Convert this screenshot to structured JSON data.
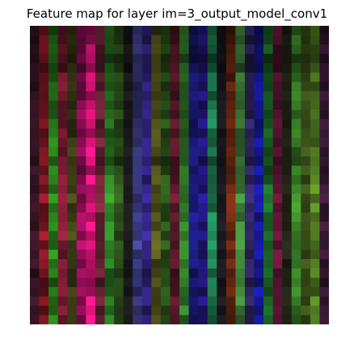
{
  "title": "Feature map for layer im=3_output_model_conv1",
  "chart_data": {
    "type": "heatmap",
    "title": "Feature map for layer im=3_output_model_conv1",
    "rows": 32,
    "cols": 32,
    "channels": "rgb",
    "axes": "off",
    "column_colors": [
      "#1a0a12",
      "#3a0a10",
      "#123d0c",
      "#3a0d18",
      "#1c1c0a",
      "#45062a",
      "#6a0a3a",
      "#35101a",
      "#133a10",
      "#14240c",
      "#0d0d0d",
      "#1a1a3a",
      "#17103a",
      "#26260c",
      "#12260c",
      "#2a0c14",
      "#183a14",
      "#0c0d3a",
      "#100b3c",
      "#0e3a25",
      "#0c0c10",
      "#301208",
      "#1d3a1a",
      "#16122e",
      "#0b0c4a",
      "#0b3010",
      "#2d0a1a",
      "#10110a",
      "#1a3a12",
      "#1c260c",
      "#263a10",
      "#1a0b18"
    ],
    "row_brightness": [
      0.55,
      0.6,
      0.65,
      0.55,
      0.6,
      0.7,
      0.75,
      0.8,
      0.75,
      0.8,
      0.85,
      0.8,
      0.9,
      0.85,
      0.75,
      0.8,
      0.9,
      0.95,
      1.0,
      0.95,
      0.9,
      0.95,
      1.0,
      0.95,
      0.9,
      0.85,
      0.8,
      0.75,
      0.85,
      0.9,
      0.85,
      0.8
    ]
  }
}
